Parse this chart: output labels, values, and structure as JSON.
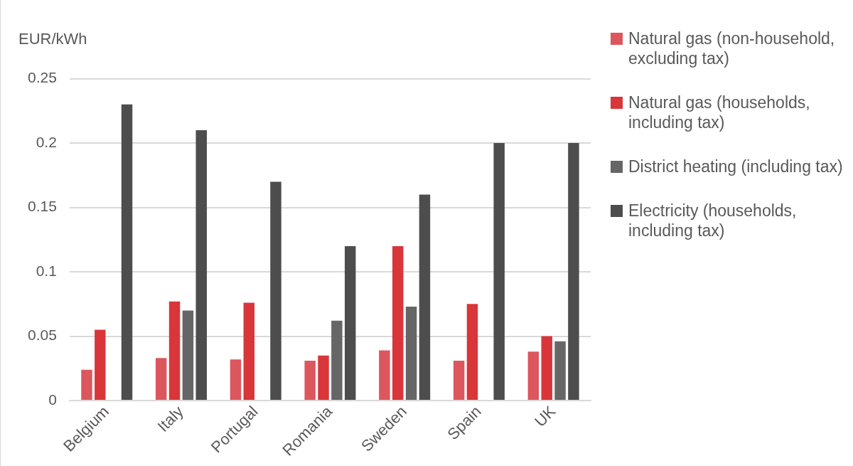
{
  "chart_data": {
    "type": "bar",
    "ylabel": "EUR/kWh",
    "categories": [
      "Belgium",
      "Italy",
      "Portugal",
      "Romania",
      "Sweden",
      "Spain",
      "UK"
    ],
    "series": [
      {
        "name": "Natural gas (non-household, excluding tax)",
        "color": "#dc565e",
        "values": [
          0.024,
          0.033,
          0.032,
          0.031,
          0.039,
          0.031,
          0.038
        ]
      },
      {
        "name": "Natural gas (households, including tax)",
        "color": "#d9363a",
        "values": [
          0.055,
          0.077,
          0.076,
          0.035,
          0.12,
          0.075,
          0.05
        ]
      },
      {
        "name": "District heating (including tax)",
        "color": "#666666",
        "values": [
          null,
          0.07,
          null,
          0.062,
          0.073,
          null,
          0.046
        ]
      },
      {
        "name": "Electricity (households, including tax)",
        "color": "#4d4d4d",
        "values": [
          0.23,
          0.21,
          0.17,
          0.12,
          0.16,
          0.2,
          0.2
        ]
      }
    ],
    "ylim": [
      0,
      0.25
    ],
    "yticks": [
      0,
      0.05,
      0.1,
      0.15,
      0.2,
      0.25
    ],
    "grid": "y",
    "legend": "right"
  }
}
